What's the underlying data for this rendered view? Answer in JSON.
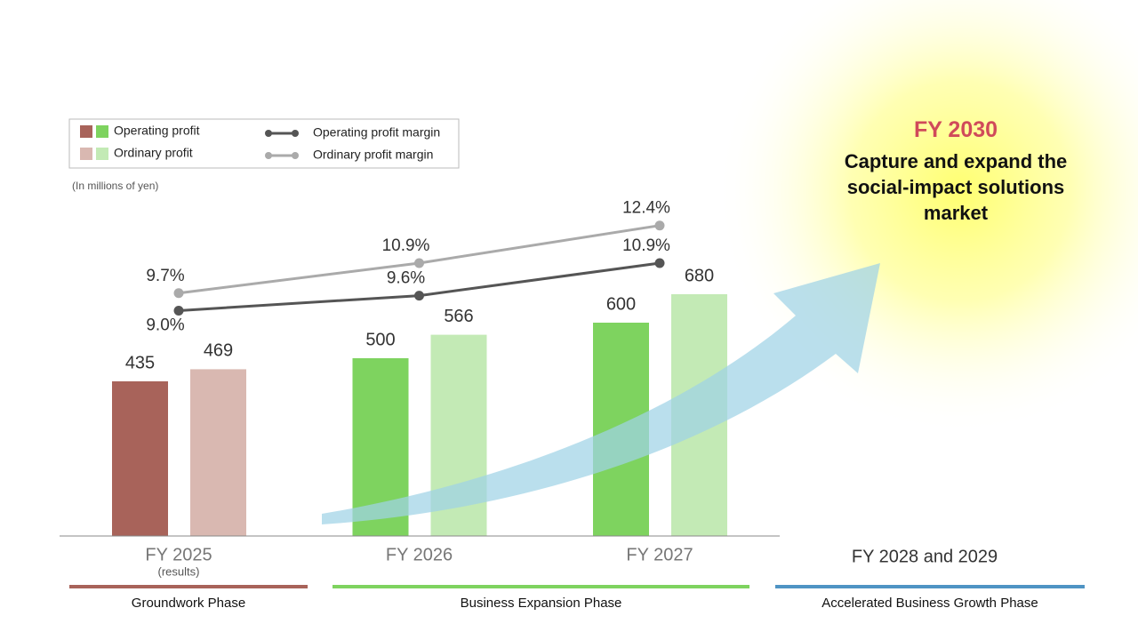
{
  "chart_data": {
    "type": "bar",
    "unit_note": "(In millions of yen)",
    "categories": [
      "FY 2025",
      "FY 2026",
      "FY 2027"
    ],
    "category_notes": [
      "(results)",
      null,
      null
    ],
    "extra_category": "FY 2028 and 2029",
    "ylim": [
      0,
      1000
    ],
    "y2lim": [
      0,
      14.2
    ],
    "series": [
      {
        "name": "Operating profit",
        "colors": [
          "#a8635a",
          "#7ed35f",
          "#7ed35f"
        ],
        "values": [
          435,
          500,
          600
        ]
      },
      {
        "name": "Ordinary profit",
        "colors": [
          "#d9b8b1",
          "#c3eab5",
          "#c3eab5"
        ],
        "values": [
          469,
          566,
          680
        ]
      },
      {
        "name": "Operating profit margin",
        "type": "line",
        "axis": "y2",
        "color": "#555555",
        "values": [
          9.0,
          9.6,
          10.9
        ],
        "value_labels": [
          "9.0%",
          "9.6%",
          "10.9%"
        ]
      },
      {
        "name": "Ordinary profit margin",
        "type": "line",
        "axis": "y2",
        "color": "#aaaaaa",
        "values": [
          9.7,
          10.9,
          12.4
        ],
        "value_labels": [
          "9.7%",
          "10.9%",
          "12.4%"
        ]
      }
    ],
    "phases": [
      {
        "name": "Groundwork Phase",
        "color": "#a8635a"
      },
      {
        "name": "Business Expansion Phase",
        "color": "#7ed35f"
      },
      {
        "name": "Accelerated Business Growth Phase",
        "color": "#4f94c4"
      }
    ],
    "callout_title": "FY 2030",
    "callout_text": "Capture and expand the social-impact solutions market"
  }
}
